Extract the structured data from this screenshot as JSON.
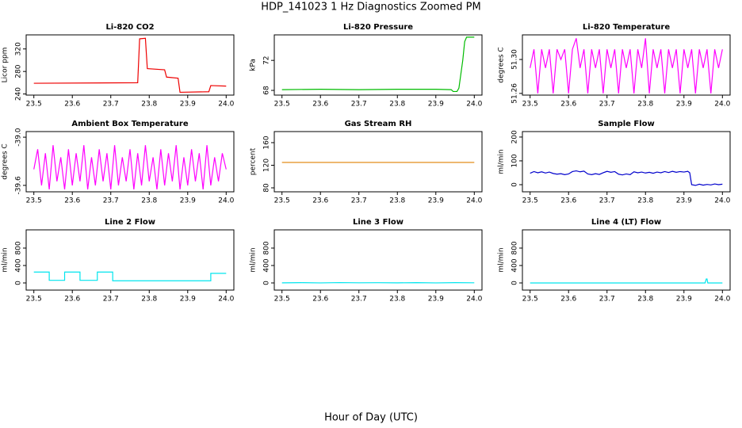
{
  "title": "HDP_141023  1 Hz Diagnostics Zoomed PM",
  "xlabel": "Hour of Day (UTC)",
  "chart_data": [
    {
      "type": "line",
      "title": "Li-820 CO2",
      "ylabel": "Licor ppm",
      "color": "#ee0000",
      "x": [
        23.5,
        23.77,
        23.775,
        23.79,
        23.795,
        23.84,
        23.845,
        23.875,
        23.88,
        23.955,
        23.96,
        24.0
      ],
      "values": [
        259,
        260,
        338,
        339,
        285,
        283,
        270,
        268,
        243,
        244,
        255,
        254
      ],
      "xlim": [
        23.48,
        24.02
      ],
      "xticks": [
        23.5,
        23.6,
        23.7,
        23.8,
        23.9,
        {
          "value": 24,
          "label": "24.0"
        }
      ],
      "ylim": [
        238,
        345
      ],
      "yticks": [
        240,
        280,
        320
      ]
    },
    {
      "type": "line",
      "title": "Li-820 Pressure",
      "ylabel": "kPa",
      "color": "#00bb00",
      "x": [
        23.5,
        23.6,
        23.7,
        23.8,
        23.9,
        23.94,
        23.945,
        23.955,
        23.96,
        23.97,
        23.975,
        23.98,
        24.0
      ],
      "values": [
        68.1,
        68.15,
        68.1,
        68.15,
        68.15,
        68.1,
        67.85,
        67.85,
        68.3,
        72,
        74.5,
        75.1,
        75.1
      ],
      "xlim": [
        23.48,
        24.02
      ],
      "xticks": [
        23.5,
        23.6,
        23.7,
        23.8,
        23.9,
        {
          "value": 24,
          "label": "24.0"
        }
      ],
      "ylim": [
        67.37,
        75.4
      ],
      "yticks": [
        68,
        72
      ]
    },
    {
      "type": "line",
      "title": "Li-820 Temperature",
      "ylabel": "degrees C",
      "color": "#ff00ff",
      "x": [
        23.5,
        23.51,
        23.52,
        23.53,
        23.54,
        23.55,
        23.56,
        23.57,
        23.58,
        23.59,
        23.6,
        23.61,
        23.62,
        23.63,
        23.64,
        23.65,
        23.66,
        23.67,
        23.68,
        23.69,
        23.7,
        23.71,
        23.72,
        23.73,
        23.74,
        23.75,
        23.76,
        23.77,
        23.78,
        23.79,
        23.8,
        23.81,
        23.82,
        23.83,
        23.84,
        23.85,
        23.86,
        23.87,
        23.88,
        23.89,
        23.9,
        23.91,
        23.92,
        23.93,
        23.94,
        23.95,
        23.96,
        23.97,
        23.98,
        23.99,
        24.0
      ],
      "values": [
        51.29,
        51.312,
        51.26,
        51.312,
        51.29,
        51.312,
        51.26,
        51.312,
        51.3,
        51.312,
        51.26,
        51.312,
        51.325,
        51.29,
        51.312,
        51.26,
        51.312,
        51.29,
        51.312,
        51.26,
        51.312,
        51.29,
        51.312,
        51.26,
        51.312,
        51.29,
        51.312,
        51.26,
        51.312,
        51.29,
        51.325,
        51.26,
        51.312,
        51.29,
        51.312,
        51.26,
        51.312,
        51.29,
        51.312,
        51.26,
        51.312,
        51.29,
        51.312,
        51.26,
        51.312,
        51.29,
        51.312,
        51.26,
        51.312,
        51.29,
        51.312
      ],
      "xlim": [
        23.48,
        24.02
      ],
      "xticks": [
        23.5,
        23.6,
        23.7,
        23.8,
        23.9,
        {
          "value": 24,
          "label": "24.0"
        }
      ],
      "ylim": [
        51.258,
        51.329
      ],
      "yticks": [
        51.26,
        {
          "value": 51.3,
          "label": "51.30"
        }
      ]
    },
    {
      "type": "line",
      "title": "Ambient Box Temperature",
      "ylabel": "degrees C",
      "color": "#ff00ff",
      "x": [
        23.5,
        23.51,
        23.52,
        23.53,
        23.54,
        23.55,
        23.56,
        23.57,
        23.58,
        23.59,
        23.6,
        23.61,
        23.62,
        23.63,
        23.64,
        23.65,
        23.66,
        23.67,
        23.68,
        23.69,
        23.7,
        23.71,
        23.72,
        23.73,
        23.74,
        23.75,
        23.76,
        23.77,
        23.78,
        23.79,
        23.8,
        23.81,
        23.82,
        23.83,
        23.84,
        23.85,
        23.86,
        23.87,
        23.88,
        23.89,
        23.9,
        23.91,
        23.92,
        23.93,
        23.94,
        23.95,
        23.96,
        23.97,
        23.98,
        23.99,
        24.0
      ],
      "values": [
        -39.4,
        -39.15,
        -39.6,
        -39.2,
        -39.65,
        -39.1,
        -39.55,
        -39.25,
        -39.65,
        -39.15,
        -39.6,
        -39.2,
        -39.55,
        -39.1,
        -39.65,
        -39.25,
        -39.6,
        -39.15,
        -39.55,
        -39.2,
        -39.65,
        -39.1,
        -39.6,
        -39.25,
        -39.55,
        -39.15,
        -39.65,
        -39.2,
        -39.6,
        -39.1,
        -39.55,
        -39.25,
        -39.65,
        -39.15,
        -39.6,
        -39.2,
        -39.55,
        -39.1,
        -39.65,
        -39.25,
        -39.6,
        -39.15,
        -39.55,
        -39.2,
        -39.65,
        -39.1,
        -39.6,
        -39.25,
        -39.55,
        -39.2,
        -39.4
      ],
      "xlim": [
        23.48,
        24.02
      ],
      "xticks": [
        23.5,
        23.6,
        23.7,
        23.8,
        23.9,
        {
          "value": 24,
          "label": "24.0"
        }
      ],
      "ylim": [
        -39.68,
        -38.93
      ],
      "yticks": [
        -39.6,
        {
          "value": -39,
          "label": "-39.0"
        }
      ]
    },
    {
      "type": "line",
      "title": "Gas Stream RH",
      "ylabel": "percent",
      "color": "#e08000",
      "x": [
        23.5,
        24.0
      ],
      "values": [
        125,
        125
      ],
      "xlim": [
        23.48,
        24.02
      ],
      "xticks": [
        23.5,
        23.6,
        23.7,
        23.8,
        23.9,
        {
          "value": 24,
          "label": "24.0"
        }
      ],
      "ylim": [
        73,
        179.6
      ],
      "yticks": [
        80,
        120,
        160
      ]
    },
    {
      "type": "line",
      "title": "Sample Flow",
      "ylabel": "ml/min",
      "color": "#0000cc",
      "x": [
        23.5,
        23.51,
        23.52,
        23.53,
        23.54,
        23.55,
        23.56,
        23.57,
        23.58,
        23.59,
        23.6,
        23.61,
        23.62,
        23.63,
        23.64,
        23.65,
        23.66,
        23.67,
        23.68,
        23.69,
        23.7,
        23.71,
        23.72,
        23.73,
        23.74,
        23.75,
        23.76,
        23.77,
        23.78,
        23.79,
        23.8,
        23.81,
        23.82,
        23.83,
        23.84,
        23.85,
        23.86,
        23.87,
        23.88,
        23.89,
        23.9,
        23.91,
        23.915,
        23.92,
        23.93,
        23.94,
        23.95,
        23.96,
        23.97,
        23.98,
        23.99,
        24.0
      ],
      "values": [
        48,
        55,
        50,
        54,
        49,
        53,
        47,
        44,
        46,
        42,
        45,
        55,
        58,
        54,
        57,
        45,
        42,
        46,
        43,
        50,
        56,
        52,
        55,
        44,
        41,
        45,
        42,
        54,
        50,
        53,
        49,
        52,
        48,
        53,
        50,
        55,
        51,
        56,
        52,
        55,
        53,
        56,
        50,
        0,
        -3,
        2,
        -2,
        1,
        -1,
        3,
        0,
        2
      ],
      "xlim": [
        23.48,
        24.02
      ],
      "xticks": [
        23.5,
        23.6,
        23.7,
        23.8,
        23.9,
        {
          "value": 24,
          "label": "24.0"
        }
      ],
      "ylim": [
        -30,
        223
      ],
      "yticks": [
        0,
        100,
        200
      ]
    },
    {
      "type": "line",
      "title": "Line 2 Flow",
      "ylabel": "ml/min",
      "color": "#00e5ee",
      "x": [
        23.5,
        23.54,
        23.54,
        23.58,
        23.58,
        23.62,
        23.62,
        23.665,
        23.665,
        23.705,
        23.705,
        23.96,
        23.96,
        24.0
      ],
      "values": [
        250,
        250,
        60,
        60,
        250,
        250,
        60,
        60,
        250,
        250,
        50,
        50,
        220,
        220
      ],
      "xlim": [
        23.48,
        24.02
      ],
      "xticks": [
        23.5,
        23.6,
        23.7,
        23.8,
        23.9,
        {
          "value": 24,
          "label": "24.0"
        }
      ],
      "ylim": [
        -164,
        1218
      ],
      "yticks": [
        0,
        400,
        800
      ]
    },
    {
      "type": "line",
      "title": "Line 3 Flow",
      "ylabel": "ml/min",
      "color": "#00e5ee",
      "x": [
        23.5,
        23.55,
        23.6,
        23.65,
        23.7,
        23.75,
        23.8,
        23.85,
        23.9,
        23.95,
        24.0
      ],
      "values": [
        2,
        6,
        1,
        8,
        3,
        5,
        2,
        7,
        1,
        6,
        3
      ],
      "xlim": [
        23.48,
        24.02
      ],
      "xticks": [
        23.5,
        23.6,
        23.7,
        23.8,
        23.9,
        {
          "value": 24,
          "label": "24.0"
        }
      ],
      "ylim": [
        -164,
        1218
      ],
      "yticks": [
        0,
        400,
        800
      ]
    },
    {
      "type": "line",
      "title": "Line 4 (LT) Flow",
      "ylabel": "ml/min",
      "color": "#00e5ee",
      "x": [
        23.5,
        23.955,
        23.958,
        23.96,
        23.962,
        24.0
      ],
      "values": [
        0,
        0,
        90,
        90,
        0,
        0
      ],
      "xlim": [
        23.48,
        24.02
      ],
      "xticks": [
        23.5,
        23.6,
        23.7,
        23.8,
        23.9,
        {
          "value": 24,
          "label": "24.0"
        }
      ],
      "ylim": [
        -164,
        1218
      ],
      "yticks": [
        0,
        400,
        800
      ]
    }
  ]
}
